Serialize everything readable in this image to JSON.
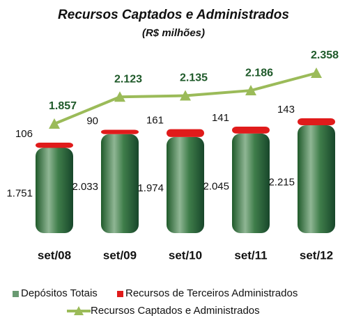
{
  "chart_data": {
    "type": "bar",
    "stacked": true,
    "title": "Recursos Captados e Administrados",
    "subtitle": "(R$ milhões)",
    "categories": [
      "set/08",
      "set/09",
      "set/10",
      "set/11",
      "set/12"
    ],
    "series": [
      {
        "name": "Depósitos Totais",
        "color": "#2f6e3c",
        "values": [
          1751,
          2033,
          1974,
          2045,
          2215
        ],
        "value_labels": [
          "1.751",
          "2.033",
          "1.974",
          "2.045",
          "2.215"
        ]
      },
      {
        "name": "Recursos de Terceiros Administrados",
        "color": "#e01b1b",
        "values": [
          106,
          90,
          161,
          141,
          143
        ]
      },
      {
        "name": "Recursos Captados e Administrados",
        "type": "line",
        "color": "#9bbb59",
        "label_color": "#1f5a2a",
        "values": [
          1857,
          2123,
          2135,
          2186,
          2358
        ],
        "value_labels": [
          "1.857",
          "2.123",
          "2.135",
          "2.186",
          "2.358"
        ]
      }
    ]
  }
}
